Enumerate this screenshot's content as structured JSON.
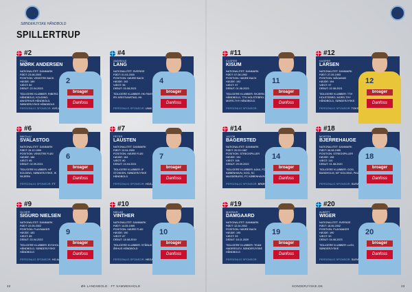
{
  "header": {
    "title": "SPILLERTRUP",
    "logo_text": "SØNDERJYSKE HÅNDBOLD"
  },
  "footer": {
    "page_left": "32",
    "left_text": "ØK LANDSBOLD · FT SAMMENHOLD",
    "right_text": "SONDERJYSKE.DK",
    "page_right": "33"
  },
  "jersey": {
    "sponsor1": "broager",
    "sponsor2": "Danfoss"
  },
  "labels": {
    "sponsor": "PERSONLIG SPONSOR:"
  },
  "colors": {
    "card": "#1f3766",
    "jersey": "#8ebfe3",
    "accent": "#7fb1e0"
  },
  "players": [
    {
      "number": "#2",
      "flag": "dk",
      "first": "POUL",
      "last": "MØRK ANDERSEN",
      "facts": [
        "NATIONALITET: DANMARK",
        "FØDT: 23.08.2003",
        "POSITION: VENSTRE BACK",
        "HØJDE: 189",
        "VÆGT: 82",
        "DEBUT: 22.04.2023"
      ],
      "clubs": "TIDLIGERE KLUBBER: RIBERG HÅNDBOLD, KOLDING-ANKERHUS HÅNDBOLD, SØNDERJYSKE HÅNDBOLD",
      "sponsor": "VVS A/S"
    },
    {
      "number": "#4",
      "flag": "se",
      "first": "ANDREAS",
      "last": "LANG",
      "facts": [
        "NATIONALITET: SVERIGE",
        "FØDT: 01.03.2000",
        "POSITION: HØJRE BACK",
        "HØJDE: 192",
        "VÆGT: 96",
        "DEBUT: 03.08.2021"
      ],
      "clubs": "TIDLIGERE KLUBBER: HK PAVIS, IFK KRISTIANSTAD, HK",
      "sponsor": "UNIK A/S"
    },
    {
      "number": "#11",
      "flag": "dk",
      "first": "KASPER",
      "last": "KISUM",
      "facts": [
        "NATIONALITET: DANMARK",
        "FØDT: 07.08.1992",
        "POSITION: HØJRE BACK",
        "HØJDE: 192",
        "VÆGT: 97",
        "DEBUT: 01.08.2023"
      ],
      "clubs": "TIDLIGERE KLUBBER: SKJERN HÅNDBOLD, TTH HOLSTEBRO, MORS-THY HÅNDBOLD",
      "sponsor": ""
    },
    {
      "number": "#12",
      "flag": "dk",
      "first": "KASPER",
      "last": "LARSEN",
      "facts": [
        "NATIONALITET: DANMARK",
        "FØDT: 27.05.1993",
        "POSITION: MÅLMAND",
        "HØJDE: 194",
        "VÆGT: 97",
        "DEBUT: 02.08.2021"
      ],
      "clubs": "TIDLIGERE KLUBBER: TTH HOLSTEBRO, MORS-THY HÅNDBOLD, SØNDERJYSKE",
      "sponsor": "TOKS-TEKNIK"
    },
    {
      "number": "#6",
      "flag": "dk",
      "first": "NIKOLAJ",
      "last": "SVALASTOG",
      "facts": [
        "NATIONALITET: DANMARK",
        "FØDT: 15.12.1999",
        "POSITION: VENSTRE FLØJ",
        "HØJDE: 186",
        "VÆGT: 85",
        "DEBUT: 02.09.2021"
      ],
      "clubs": "TIDLIGERE KLUBBER: HF KOLDING, SØNDERJYSKE, IK SKJERN",
      "sponsor": "TT"
    },
    {
      "number": "#7",
      "flag": "dk",
      "first": "PETER",
      "last": "LAUSTEN",
      "facts": [
        "NATIONALITET: DANMARK",
        "FØDT: 13.04.2000",
        "POSITION: HØJRE FLØJ",
        "HØJDE: 184",
        "VÆGT: 80",
        "DEBUT: 24.04.2021"
      ],
      "clubs": "TIDLIGERE KLUBBER: IF STOKKEN, SØNDERJYSKE HÅNDBOLD",
      "sponsor": "HGS A/S"
    },
    {
      "number": "#14",
      "flag": "dk",
      "first": "JACOB",
      "last": "BAGERSTED",
      "facts": [
        "NATIONALITET: DANMARK",
        "FØDT: 20.03.1987",
        "POSITION: STREGSPILLER",
        "HØJDE: 194",
        "VÆGT: 106",
        "DEBUT: 29.09.2022"
      ],
      "clubs": "TIDLIGERE KLUBBER: AJAX, FC KØBENHAVN, GOG, SC MAGDEBURG, FC KØBENHAVN",
      "sponsor": "BRØNDE SYSTEMS"
    },
    {
      "number": "#18",
      "flag": "dk",
      "first": "MORTEN",
      "last": "BJERREHAUGE",
      "facts": [
        "NATIONALITET: DANMARK",
        "FØDT: 06.08.1995",
        "POSITION: STREGSPILLER",
        "HØJDE: 198",
        "VÆGT: 110",
        "DEBUT: 01.08.2020"
      ],
      "clubs": "TIDLIGERE KLUBBER: GOG, BANDHOLM, KIF KOLDING, PAUC",
      "sponsor": "SURAPLASTIK"
    },
    {
      "number": "#9",
      "flag": "dk",
      "first": "OLIVER",
      "last": "SIGURD NIELSEN",
      "facts": [
        "NATIONALITET: DANMARK",
        "FØDT: 22.05.2002",
        "POSITION: PLAYMAKER",
        "HØJDE: 183",
        "VÆGT: 85",
        "DEBUT: 22.04.2022"
      ],
      "clubs": "TIDLIGERE KLUBBER: BYGHOLM HÅNDBOLD, SØNDERJYSKE HÅNDBOLD",
      "sponsor": "HG A/S"
    },
    {
      "number": "#10",
      "flag": "dk",
      "first": "NIKLAS",
      "last": "VINTHER",
      "facts": [
        "NATIONALITET: DANMARK",
        "FØDT: 14.05.1999",
        "POSITION: HØJRE FLØJ",
        "HØJDE: 190",
        "VÆGT: 87",
        "DEBUT: 18.08.2019"
      ],
      "clubs": "TIDLIGERE KLUBBER: STÅBLIK IF, ÅRHUS HÅNDBOLD",
      "sponsor": "HEGA TOPPER"
    },
    {
      "number": "#19",
      "flag": "dk",
      "first": "MAGNUS",
      "last": "DAMGAARD",
      "facts": [
        "NATIONALITET: DANMARK",
        "FØDT: 12.04.2002",
        "POSITION: HØJRE BACK",
        "HØJDE: 195",
        "VÆGT: 93",
        "DEBUT: 18.11.2020"
      ],
      "clubs": "TIDLIGERE KLUBBER: TEAM HADERSLEV, SØNDERJYSKE HÅNDBOLD",
      "sponsor": ""
    },
    {
      "number": "#20",
      "flag": "se",
      "first": "ALBERT",
      "last": "WIGER",
      "facts": [
        "NATIONALITET: SVERIGE",
        "FØDT: 18.06.2002",
        "POSITION: PLAYMAKER",
        "HØJDE: 190",
        "VÆGT: 90",
        "DEBUT: 04.08.2023"
      ],
      "clubs": "TIDLIGERE KLUBBER: LUGI, SØNDERJYSKE",
      "sponsor": "SURAPLASTIK"
    }
  ]
}
